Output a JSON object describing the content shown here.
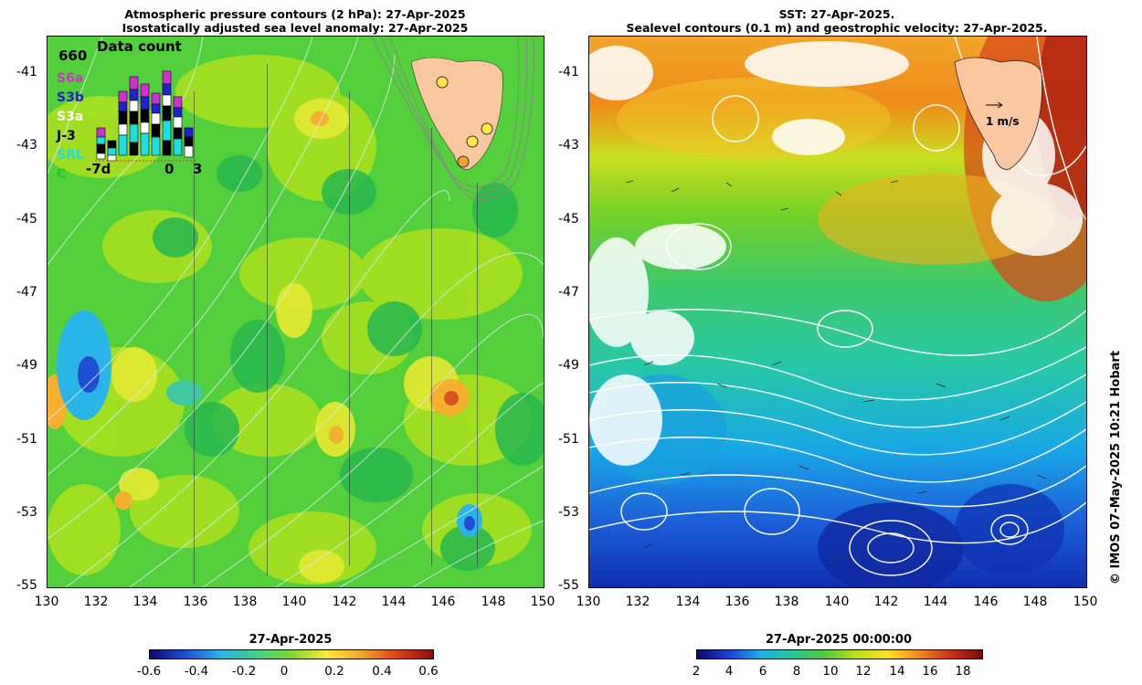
{
  "left_panel": {
    "title_line1": "Atmospheric pressure contours (2 hPa): 27-Apr-2025",
    "title_line2": "Isostatically adjusted sea level anomaly: 27-Apr-2025",
    "inset": {
      "count_max": "660",
      "title": "Data count",
      "satellites": [
        {
          "label": "S6a",
          "color": "#cc33cc"
        },
        {
          "label": "S3b",
          "color": "#2222cc"
        },
        {
          "label": "S3a",
          "color": "#ffffff"
        },
        {
          "label": "J-3",
          "color": "#000000"
        },
        {
          "label": "SRL",
          "color": "#22dddd"
        },
        {
          "label": "C",
          "color": "#22cc22"
        }
      ],
      "x_labels": [
        "-7d",
        "0",
        "3"
      ]
    },
    "colorbar": {
      "date": "27-Apr-2025",
      "ticks": [
        "-0.6",
        "-0.4",
        "-0.2",
        "0",
        "0.2",
        "0.4",
        "0.6"
      ],
      "colors": [
        "#0a0a6e",
        "#1f4fd0",
        "#2ab5e8",
        "#3ecf8a",
        "#7fd92a",
        "#ffe93a",
        "#f2a52a",
        "#d8401a",
        "#8a0f0a"
      ]
    }
  },
  "right_panel": {
    "title_line1": "SST: 27-Apr-2025.",
    "title_line2": "Sealevel contours (0.1 m) and geostrophic velocity: 27-Apr-2025.",
    "velocity_scale_label": "1 m/s",
    "colorbar": {
      "date": "27-Apr-2025 00:00:00",
      "ticks": [
        "2",
        "4",
        "6",
        "8",
        "10",
        "12",
        "14",
        "16",
        "18"
      ],
      "colors": [
        "#0a0a6e",
        "#1c3fd0",
        "#19b2e6",
        "#27c79a",
        "#4ec93a",
        "#b8e21a",
        "#ffe022",
        "#f08a1a",
        "#c8321a",
        "#7a0808"
      ]
    }
  },
  "axes": {
    "y_ticks": [
      "-41",
      "-43",
      "-45",
      "-47",
      "-49",
      "-51",
      "-53",
      "-55"
    ],
    "x_ticks": [
      "130",
      "132",
      "134",
      "136",
      "138",
      "140",
      "142",
      "144",
      "146",
      "148",
      "150"
    ]
  },
  "credit": "© IMOS 07-May-2025 10:21 Hobart",
  "colors": {
    "land": "#f9c8a0",
    "marker_yellow": "#ffe84a"
  }
}
